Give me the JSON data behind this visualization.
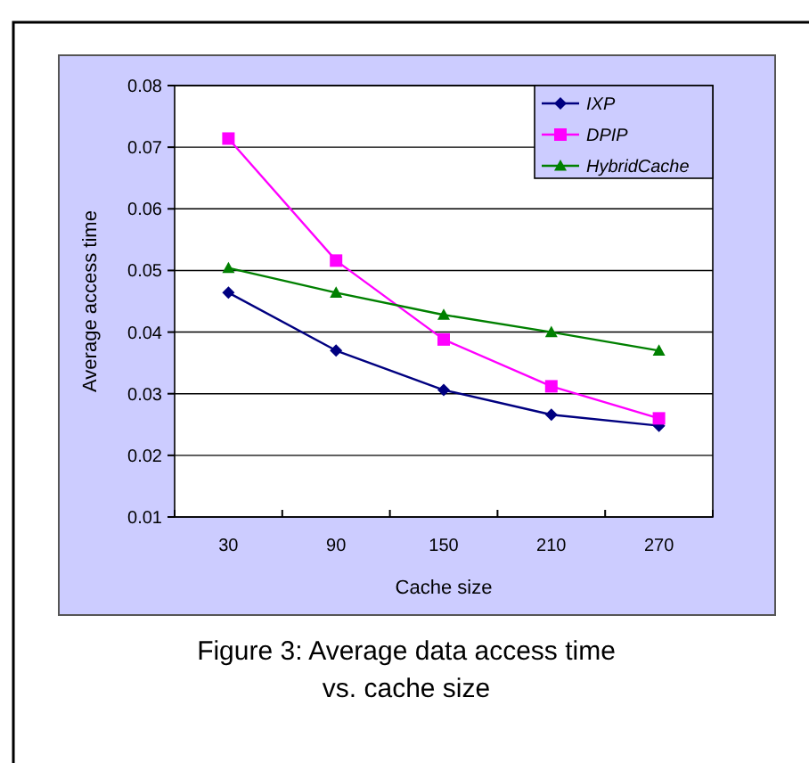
{
  "chart_data": {
    "type": "line",
    "xlabel": "Cache size",
    "ylabel": "Average access time",
    "categories": [
      "30",
      "90",
      "150",
      "210",
      "270"
    ],
    "series": [
      {
        "name": "IXP",
        "color": "#000080",
        "marker": "diamond",
        "values": [
          0.0464,
          0.037,
          0.0306,
          0.0266,
          0.0248
        ]
      },
      {
        "name": "DPIP",
        "color": "#ff00ff",
        "marker": "square",
        "values": [
          0.0714,
          0.0516,
          0.0388,
          0.0312,
          0.026
        ]
      },
      {
        "name": "HybridCache",
        "color": "#008000",
        "marker": "triangle",
        "values": [
          0.0504,
          0.0464,
          0.0428,
          0.04,
          0.037
        ]
      }
    ],
    "ylim": [
      0.01,
      0.08
    ],
    "yticks": [
      0.01,
      0.02,
      0.03,
      0.04,
      0.05,
      0.06,
      0.07,
      0.08
    ],
    "grid": "y",
    "legend": "top right",
    "annotations": [
      "Figure 3: Average data access time vs. cache size"
    ]
  }
}
